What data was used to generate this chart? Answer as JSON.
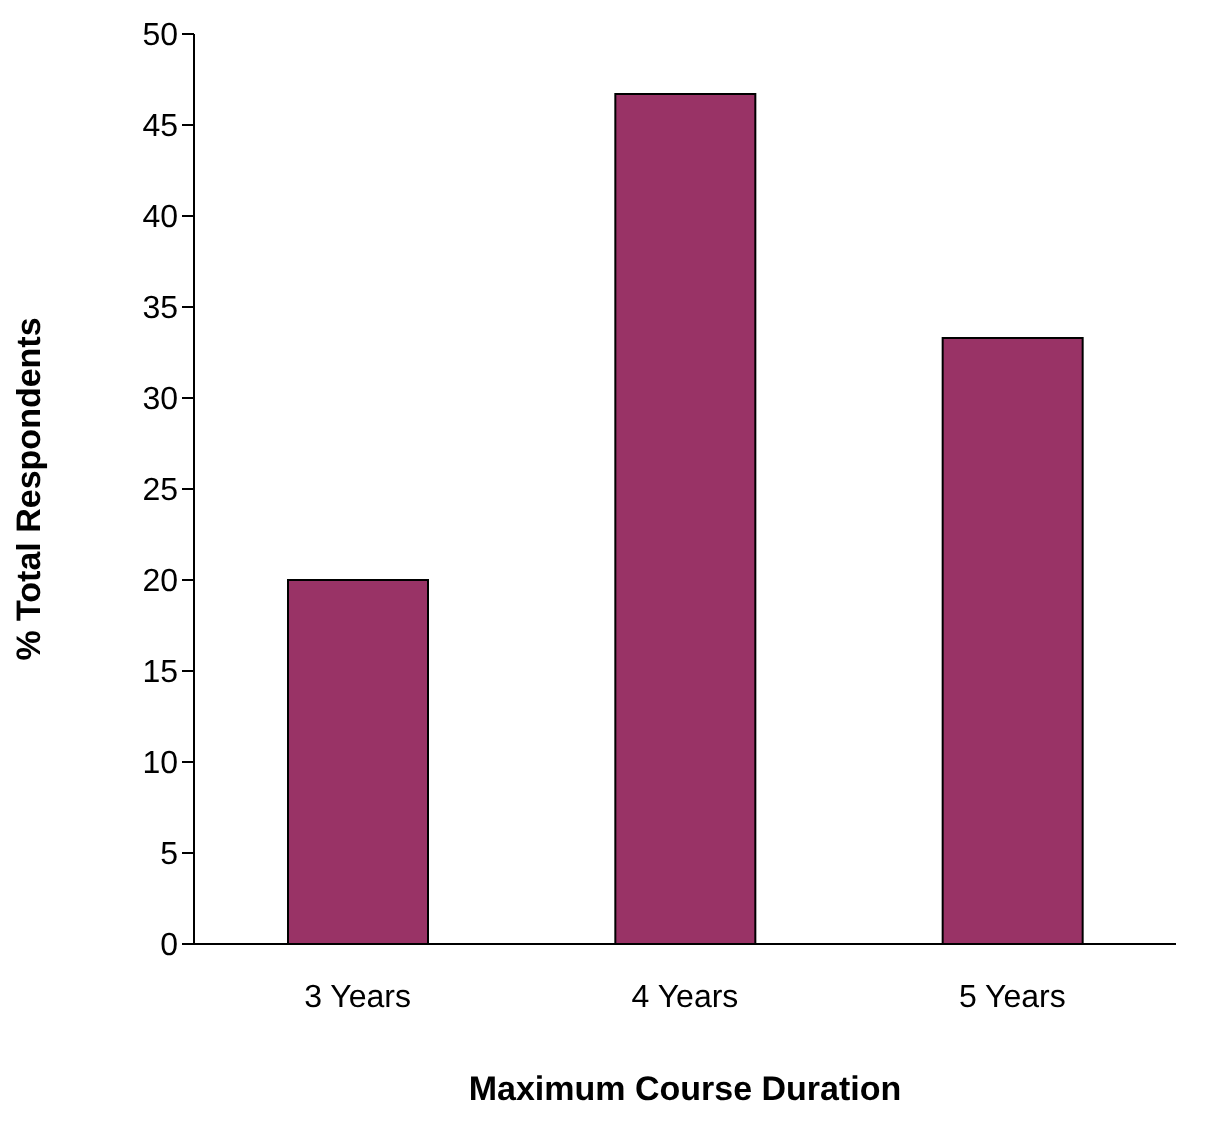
{
  "chart_data": {
    "type": "bar",
    "xlabel": "Maximum Course Duration",
    "ylabel": "% Total Respondents",
    "categories": [
      "3 Years",
      "4 Years",
      "5 Years"
    ],
    "values": [
      20,
      46.7,
      33.3
    ],
    "color": "#993366",
    "ylim": [
      0,
      50
    ],
    "yticks": [
      0,
      5,
      10,
      15,
      20,
      25,
      30,
      35,
      40,
      45,
      50
    ],
    "grid": false
  }
}
